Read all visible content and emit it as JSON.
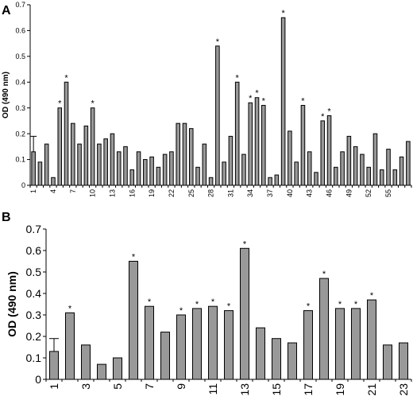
{
  "chart_data": [
    {
      "panel": "A",
      "type": "bar",
      "xlabel": "",
      "ylabel": "OD (490 nm)",
      "ylim": [
        0,
        0.7
      ],
      "yticks": [
        "0",
        "0.1",
        "0.2",
        "0.3",
        "0.4",
        "0.5",
        "0.6",
        "0.7"
      ],
      "xticks": [
        "1",
        "4",
        "7",
        "10",
        "13",
        "16",
        "19",
        "22",
        "25",
        "28",
        "31",
        "34",
        "37",
        "40",
        "43",
        "46",
        "49",
        "52",
        "55"
      ],
      "grid": false,
      "bar_color": "#999999",
      "categories": [
        1,
        2,
        3,
        4,
        5,
        6,
        7,
        8,
        9,
        10,
        11,
        12,
        13,
        14,
        15,
        16,
        17,
        18,
        19,
        20,
        21,
        22,
        23,
        24,
        25,
        26,
        27,
        28,
        29,
        30,
        31,
        32,
        33,
        34,
        35,
        36,
        37,
        38,
        39,
        40,
        41,
        42,
        43,
        44,
        45,
        46,
        47,
        48,
        49,
        50,
        51,
        52,
        53,
        54,
        55,
        56,
        57,
        58
      ],
      "values": [
        0.13,
        0.09,
        0.16,
        0.03,
        0.3,
        0.4,
        0.24,
        0.16,
        0.23,
        0.3,
        0.16,
        0.18,
        0.2,
        0.13,
        0.15,
        0.06,
        0.13,
        0.1,
        0.11,
        0.07,
        0.12,
        0.13,
        0.24,
        0.24,
        0.22,
        0.07,
        0.16,
        0.03,
        0.54,
        0.09,
        0.19,
        0.4,
        0.12,
        0.32,
        0.34,
        0.31,
        0.03,
        0.04,
        0.65,
        0.21,
        0.09,
        0.31,
        0.13,
        0.05,
        0.25,
        0.27,
        0.07,
        0.13,
        0.19,
        0.15,
        0.12,
        0.07,
        0.2,
        0.06,
        0.14,
        0.06,
        0.11,
        0.17
      ],
      "errors": [
        0.06,
        0,
        0,
        0,
        0,
        0,
        0,
        0,
        0,
        0,
        0,
        0,
        0,
        0,
        0,
        0,
        0,
        0,
        0,
        0,
        0,
        0,
        0,
        0,
        0,
        0,
        0,
        0,
        0,
        0,
        0,
        0,
        0,
        0,
        0,
        0,
        0,
        0,
        0,
        0,
        0,
        0,
        0,
        0,
        0,
        0,
        0,
        0,
        0,
        0,
        0,
        0,
        0,
        0,
        0,
        0,
        0,
        0
      ],
      "significant": [
        5,
        6,
        10,
        29,
        32,
        34,
        35,
        36,
        39,
        42,
        45,
        46
      ],
      "annotation_mark": "*"
    },
    {
      "panel": "B",
      "type": "bar",
      "xlabel": "",
      "ylabel": "OD (490 nm)",
      "ylim": [
        0,
        0.7
      ],
      "yticks": [
        "0",
        "0.1",
        "0.2",
        "0.3",
        "0.4",
        "0.5",
        "0.6",
        "0.7"
      ],
      "xticks": [
        "1",
        "3",
        "5",
        "7",
        "9",
        "11",
        "13",
        "15",
        "17",
        "19",
        "21",
        "23"
      ],
      "grid": false,
      "bar_color": "#999999",
      "categories": [
        1,
        2,
        3,
        4,
        5,
        6,
        7,
        8,
        9,
        10,
        11,
        12,
        13,
        14,
        15,
        16,
        17,
        18,
        19,
        20,
        21,
        22,
        23
      ],
      "values": [
        0.13,
        0.31,
        0.16,
        0.07,
        0.1,
        0.55,
        0.34,
        0.22,
        0.3,
        0.33,
        0.34,
        0.32,
        0.61,
        0.24,
        0.19,
        0.17,
        0.32,
        0.47,
        0.33,
        0.33,
        0.37,
        0.16,
        0.17
      ],
      "errors": [
        0.06,
        0,
        0,
        0,
        0,
        0,
        0,
        0,
        0,
        0,
        0,
        0,
        0,
        0,
        0,
        0,
        0,
        0,
        0,
        0,
        0,
        0,
        0
      ],
      "significant": [
        2,
        6,
        7,
        9,
        10,
        11,
        12,
        13,
        17,
        18,
        19,
        20,
        21
      ],
      "annotation_mark": "*"
    }
  ]
}
